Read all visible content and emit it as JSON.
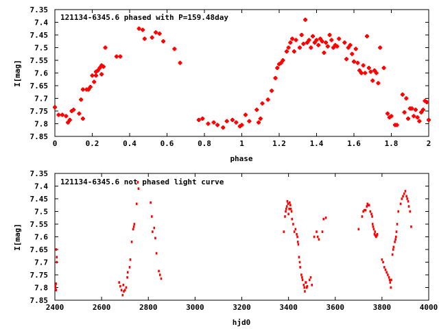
{
  "chart_data": [
    {
      "type": "scatter",
      "title": "121134-6345.6 phased with P=159.48day",
      "xlabel": "phase",
      "ylabel": "I[mag]",
      "xlim": [
        0,
        2
      ],
      "ylim": [
        7.85,
        7.35
      ],
      "y_inverted": true,
      "grid": false,
      "marker": "plus",
      "color": "#ff0000",
      "x_ticks": [
        "0",
        "0.2",
        "0.4",
        "0.6",
        "0.8",
        "1",
        "1.2",
        "1.4",
        "1.6",
        "1.8",
        "2"
      ],
      "y_ticks": [
        "7.35",
        "7.4",
        "7.45",
        "7.5",
        "7.55",
        "7.6",
        "7.65",
        "7.7",
        "7.75",
        "7.8",
        "7.85"
      ],
      "x": [
        0.0,
        0.02,
        0.04,
        0.06,
        0.07,
        0.08,
        0.09,
        0.1,
        0.13,
        0.14,
        0.15,
        0.15,
        0.17,
        0.18,
        0.19,
        0.2,
        0.21,
        0.22,
        0.22,
        0.23,
        0.24,
        0.25,
        0.25,
        0.26,
        0.27,
        0.33,
        0.35,
        0.45,
        0.47,
        0.48,
        0.52,
        0.54,
        0.56,
        0.58,
        0.64,
        0.67,
        0.77,
        0.79,
        0.82,
        0.85,
        0.87,
        0.9,
        0.92,
        0.95,
        0.97,
        0.99,
        1.0,
        1.02,
        1.04,
        1.08,
        1.09,
        1.1,
        1.11,
        1.14,
        1.16,
        1.18,
        1.19,
        1.2,
        1.21,
        1.22,
        1.24,
        1.25,
        1.26,
        1.27,
        1.28,
        1.29,
        1.31,
        1.32,
        1.33,
        1.34,
        1.35,
        1.36,
        1.37,
        1.38,
        1.39,
        1.4,
        1.41,
        1.42,
        1.43,
        1.44,
        1.45,
        1.46,
        1.47,
        1.48,
        1.49,
        1.5,
        1.51,
        1.52,
        1.55,
        1.56,
        1.57,
        1.58,
        1.59,
        1.6,
        1.61,
        1.62,
        1.63,
        1.64,
        1.65,
        1.66,
        1.67,
        1.68,
        1.69,
        1.7,
        1.71,
        1.72,
        1.73,
        1.74,
        1.76,
        1.78,
        1.79,
        1.8,
        1.82,
        1.83,
        1.86,
        1.87,
        1.88,
        1.89,
        1.9,
        1.91,
        1.92,
        1.93,
        1.94,
        1.95,
        1.96,
        1.97,
        1.98,
        1.99,
        2.0
      ],
      "y": [
        7.735,
        7.765,
        7.765,
        7.77,
        7.795,
        7.785,
        7.75,
        7.745,
        7.76,
        7.705,
        7.665,
        7.78,
        7.665,
        7.665,
        7.655,
        7.61,
        7.635,
        7.61,
        7.595,
        7.59,
        7.58,
        7.57,
        7.605,
        7.575,
        7.5,
        7.535,
        7.535,
        7.425,
        7.43,
        7.465,
        7.46,
        7.44,
        7.445,
        7.475,
        7.505,
        7.56,
        7.785,
        7.78,
        7.8,
        7.795,
        7.805,
        7.815,
        7.79,
        7.785,
        7.795,
        7.81,
        7.805,
        7.765,
        7.79,
        7.745,
        7.795,
        7.78,
        7.72,
        7.705,
        7.67,
        7.62,
        7.58,
        7.565,
        7.56,
        7.55,
        7.515,
        7.5,
        7.48,
        7.465,
        7.515,
        7.47,
        7.5,
        7.45,
        7.485,
        7.39,
        7.48,
        7.47,
        7.5,
        7.455,
        7.48,
        7.47,
        7.49,
        7.465,
        7.475,
        7.52,
        7.48,
        7.495,
        7.45,
        7.47,
        7.5,
        7.49,
        7.495,
        7.465,
        7.48,
        7.545,
        7.5,
        7.49,
        7.525,
        7.555,
        7.505,
        7.56,
        7.59,
        7.6,
        7.57,
        7.6,
        7.455,
        7.58,
        7.595,
        7.63,
        7.59,
        7.6,
        7.64,
        7.5,
        7.58,
        7.76,
        7.775,
        7.77,
        7.805,
        7.805,
        7.685,
        7.755,
        7.7,
        7.78,
        7.74,
        7.74,
        7.77,
        7.745,
        7.775,
        7.79,
        7.755,
        7.745,
        7.71,
        7.715,
        7.785
      ]
    },
    {
      "type": "scatter",
      "title": "121134-6345.6 not phased light curve",
      "xlabel": "hjd0",
      "ylabel": "I[mag]",
      "xlim": [
        2400,
        4000
      ],
      "ylim": [
        7.85,
        7.35
      ],
      "y_inverted": true,
      "grid": false,
      "marker": "dot",
      "color": "#ff0000",
      "x_ticks": [
        "2400",
        "2600",
        "2800",
        "3000",
        "3200",
        "3400",
        "3600",
        "3800",
        "4000"
      ],
      "y_ticks": [
        "7.35",
        "7.4",
        "7.45",
        "7.5",
        "7.55",
        "7.6",
        "7.65",
        "7.7",
        "7.75",
        "7.8",
        "7.85"
      ],
      "x": [
        2402,
        2403,
        2405,
        2405,
        2406,
        2408,
        2408,
        2675,
        2680,
        2685,
        2690,
        2693,
        2695,
        2700,
        2705,
        2710,
        2712,
        2720,
        2723,
        2729,
        2735,
        2738,
        2740,
        2750,
        2755,
        2758,
        2810,
        2815,
        2818,
        2825,
        2830,
        2835,
        2845,
        2850,
        2855,
        3380,
        3385,
        3388,
        3390,
        3393,
        3395,
        3398,
        3400,
        3403,
        3405,
        3408,
        3410,
        3413,
        3415,
        3420,
        3425,
        3430,
        3435,
        3438,
        3440,
        3442,
        3445,
        3448,
        3450,
        3455,
        3458,
        3460,
        3465,
        3468,
        3470,
        3473,
        3475,
        3478,
        3480,
        3490,
        3495,
        3500,
        3510,
        3520,
        3525,
        3530,
        3545,
        3550,
        3560,
        3700,
        3715,
        3720,
        3725,
        3730,
        3735,
        3738,
        3740,
        3745,
        3750,
        3755,
        3758,
        3760,
        3762,
        3765,
        3768,
        3770,
        3772,
        3775,
        3778,
        3780,
        3800,
        3805,
        3810,
        3815,
        3820,
        3825,
        3830,
        3833,
        3835,
        3838,
        3840,
        3845,
        3848,
        3850,
        3855,
        3858,
        3860,
        3862,
        3865,
        3870,
        3880,
        3885,
        3890,
        3895,
        3900,
        3905,
        3908,
        3912,
        3915,
        3920,
        3925
      ],
      "y": [
        7.795,
        7.805,
        7.785,
        7.81,
        7.65,
        7.7,
        7.68,
        7.78,
        7.795,
        7.81,
        7.83,
        7.79,
        7.815,
        7.81,
        7.8,
        7.76,
        7.74,
        7.72,
        7.69,
        7.62,
        7.57,
        7.56,
        7.55,
        7.47,
        7.385,
        7.41,
        7.465,
        7.52,
        7.58,
        7.565,
        7.605,
        7.665,
        7.735,
        7.75,
        7.765,
        7.58,
        7.52,
        7.5,
        7.49,
        7.48,
        7.46,
        7.47,
        7.51,
        7.49,
        7.465,
        7.475,
        7.49,
        7.5,
        7.53,
        7.55,
        7.58,
        7.57,
        7.59,
        7.6,
        7.62,
        7.63,
        7.68,
        7.7,
        7.72,
        7.75,
        7.76,
        7.77,
        7.79,
        7.8,
        7.815,
        7.78,
        7.78,
        7.8,
        7.795,
        7.77,
        7.76,
        7.79,
        7.6,
        7.58,
        7.6,
        7.61,
        7.58,
        7.53,
        7.525,
        7.57,
        7.52,
        7.5,
        7.495,
        7.495,
        7.48,
        7.47,
        7.475,
        7.475,
        7.5,
        7.51,
        7.52,
        7.55,
        7.56,
        7.57,
        7.59,
        7.58,
        7.595,
        7.6,
        7.595,
        7.59,
        7.69,
        7.7,
        7.72,
        7.73,
        7.74,
        7.75,
        7.76,
        7.77,
        7.78,
        7.8,
        7.77,
        7.67,
        7.65,
        7.64,
        7.62,
        7.61,
        7.6,
        7.58,
        7.55,
        7.5,
        7.47,
        7.45,
        7.44,
        7.43,
        7.42,
        7.44,
        7.45,
        7.46,
        7.48,
        7.5,
        7.56
      ]
    }
  ]
}
